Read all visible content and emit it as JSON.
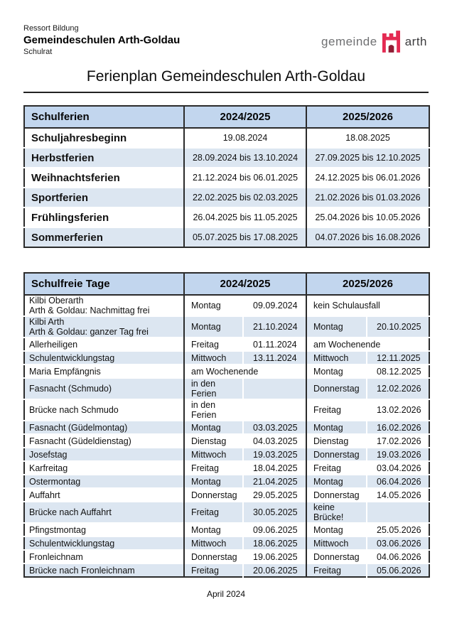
{
  "header": {
    "department": "Ressort Bildung",
    "organization": "Gemeindeschulen Arth-Goldau",
    "unit": "Schulrat"
  },
  "logo": {
    "prefix": "gemeinde",
    "suffix": "arth",
    "icon": "castle-tower-icon",
    "icon_color": "#e42a52",
    "icon_door_color": "#8f1d34"
  },
  "title": "Ferienplan Gemeindeschulen Arth-Goldau",
  "colors": {
    "table_header_bg": "#c2d6ee",
    "row_stripe_bg": "#dce6f1",
    "table_border": "#2b2b2b"
  },
  "holiday_table": {
    "headers": [
      "Schulferien",
      "2024/2025",
      "2025/2026"
    ],
    "rows": [
      {
        "label": "Schuljahresbeginn",
        "y1": "19.08.2024",
        "y2": "18.08.2025"
      },
      {
        "label": "Herbstferien",
        "y1": "28.09.2024 bis 13.10.2024",
        "y2": "27.09.2025 bis 12.10.2025"
      },
      {
        "label": "Weihnachtsferien",
        "y1": "21.12.2024 bis 06.01.2025",
        "y2": "24.12.2025 bis 06.01.2026"
      },
      {
        "label": "Sportferien",
        "y1": "22.02.2025 bis 02.03.2025",
        "y2": "21.02.2026 bis 01.03.2026"
      },
      {
        "label": "Frühlingsferien",
        "y1": "26.04.2025 bis 11.05.2025",
        "y2": "25.04.2026 bis 10.05.2026"
      },
      {
        "label": "Sommerferien",
        "y1": "05.07.2025 bis 17.08.2025",
        "y2": "04.07.2026 bis 16.08.2026"
      }
    ]
  },
  "free_days_table": {
    "headers": [
      "Schulfreie Tage",
      "2024/2025",
      "2025/2026"
    ],
    "rows": [
      {
        "label": "Kilbi Oberarth\nArth & Goldau: Nachmittag frei",
        "y1": {
          "day": "Montag",
          "date": "09.09.2024"
        },
        "y2": {
          "span": "kein Schulausfall"
        }
      },
      {
        "label": "Kilbi Arth\nArth & Goldau: ganzer Tag frei",
        "y1": {
          "day": "Montag",
          "date": "21.10.2024"
        },
        "y2": {
          "day": "Montag",
          "date": "20.10.2025"
        }
      },
      {
        "label": "Allerheiligen",
        "y1": {
          "day": "Freitag",
          "date": "01.11.2024"
        },
        "y2": {
          "span": "am Wochenende"
        }
      },
      {
        "label": "Schulentwicklungstag",
        "y1": {
          "day": "Mittwoch",
          "date": "13.11.2024"
        },
        "y2": {
          "day": "Mittwoch",
          "date": "12.11.2025"
        }
      },
      {
        "label": "Maria Empfängnis",
        "y1": {
          "span": "am Wochenende"
        },
        "y2": {
          "day": "Montag",
          "date": "08.12.2025"
        }
      },
      {
        "label": "Fasnacht (Schmudo)",
        "y1": {
          "day": "in den Ferien",
          "date": ""
        },
        "y2": {
          "day": "Donnerstag",
          "date": "12.02.2026"
        }
      },
      {
        "label": "Brücke nach Schmudo",
        "y1": {
          "day": "in den Ferien",
          "date": ""
        },
        "y2": {
          "day": "Freitag",
          "date": "13.02.2026"
        }
      },
      {
        "label": "Fasnacht (Güdelmontag)",
        "y1": {
          "day": "Montag",
          "date": "03.03.2025"
        },
        "y2": {
          "day": "Montag",
          "date": "16.02.2026"
        }
      },
      {
        "label": "Fasnacht (Güdeldienstag)",
        "y1": {
          "day": "Dienstag",
          "date": "04.03.2025"
        },
        "y2": {
          "day": "Dienstag",
          "date": "17.02.2026"
        }
      },
      {
        "label": "Josefstag",
        "y1": {
          "day": "Mittwoch",
          "date": "19.03.2025"
        },
        "y2": {
          "day": "Donnerstag",
          "date": "19.03.2026"
        }
      },
      {
        "label": "Karfreitag",
        "y1": {
          "day": "Freitag",
          "date": "18.04.2025"
        },
        "y2": {
          "day": "Freitag",
          "date": "03.04.2026"
        }
      },
      {
        "label": "Ostermontag",
        "y1": {
          "day": "Montag",
          "date": "21.04.2025"
        },
        "y2": {
          "day": "Montag",
          "date": "06.04.2026"
        }
      },
      {
        "label": "Auffahrt",
        "y1": {
          "day": "Donnerstag",
          "date": "29.05.2025"
        },
        "y2": {
          "day": "Donnerstag",
          "date": "14.05.2026"
        }
      },
      {
        "label": "Brücke nach Auffahrt",
        "y1": {
          "day": "Freitag",
          "date": "30.05.2025"
        },
        "y2": {
          "day": "keine Brücke!",
          "date": ""
        }
      },
      {
        "label": "Pfingstmontag",
        "y1": {
          "day": "Montag",
          "date": "09.06.2025"
        },
        "y2": {
          "day": "Montag",
          "date": "25.05.2026"
        }
      },
      {
        "label": "Schulentwicklungstag",
        "y1": {
          "day": "Mittwoch",
          "date": "18.06.2025"
        },
        "y2": {
          "day": "Mittwoch",
          "date": "03.06.2026"
        }
      },
      {
        "label": "Fronleichnam",
        "y1": {
          "day": "Donnerstag",
          "date": "19.06.2025"
        },
        "y2": {
          "day": "Donnerstag",
          "date": "04.06.2026"
        }
      },
      {
        "label": "Brücke nach Fronleichnam",
        "y1": {
          "day": "Freitag",
          "date": "20.06.2025"
        },
        "y2": {
          "day": "Freitag",
          "date": "05.06.2026"
        }
      }
    ]
  },
  "footer": "April 2024"
}
